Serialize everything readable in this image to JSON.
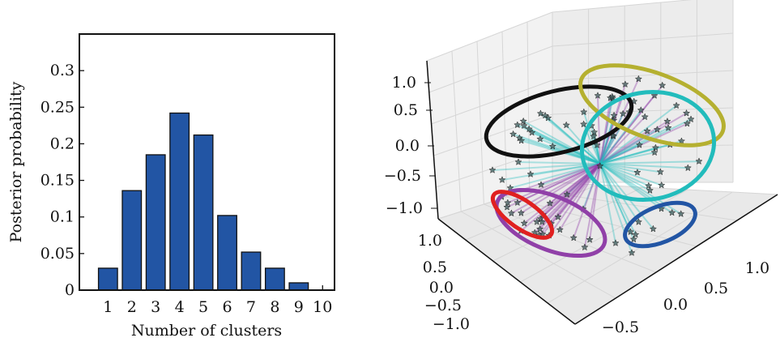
{
  "chart_data": [
    {
      "type": "bar",
      "xlabel": "Number of clusters",
      "ylabel": "Posterior probability",
      "categories": [
        "1",
        "2",
        "3",
        "4",
        "5",
        "6",
        "7",
        "8",
        "9",
        "10"
      ],
      "values": [
        0.03,
        0.136,
        0.185,
        0.242,
        0.212,
        0.102,
        0.052,
        0.03,
        0.01,
        0.0
      ],
      "xticks": [
        "1",
        "2",
        "3",
        "4",
        "5",
        "6",
        "7",
        "8",
        "9",
        "10"
      ],
      "yticks": [
        "0",
        "0.05",
        "0.1",
        "0.15",
        "0.2",
        "0.25",
        "0.3"
      ],
      "ylim": [
        0,
        0.35
      ],
      "bar_color": "#2255a4",
      "grid": false
    },
    {
      "type": "scatter",
      "projection": "3d",
      "x_ticks": [
        "−0.5",
        "0.0",
        "0.5",
        "1.0"
      ],
      "y_ticks": [
        "1.0",
        "0.5",
        "0.0",
        "−0.5",
        "−1.0"
      ],
      "z_ticks": [
        "1.0",
        "0.5",
        "0.0",
        "−0.5",
        "−1.0"
      ],
      "xlim": [
        -1.0,
        1.3
      ],
      "ylim": [
        -1.2,
        1.2
      ],
      "zlim": [
        -1.2,
        1.3
      ],
      "grid": true,
      "clusters": [
        {
          "color": "#111111"
        },
        {
          "color": "#b5b030"
        },
        {
          "color": "#22bcbc"
        },
        {
          "color": "#9040a8"
        },
        {
          "color": "#e02020"
        },
        {
          "color": "#2255a4"
        }
      ]
    }
  ]
}
